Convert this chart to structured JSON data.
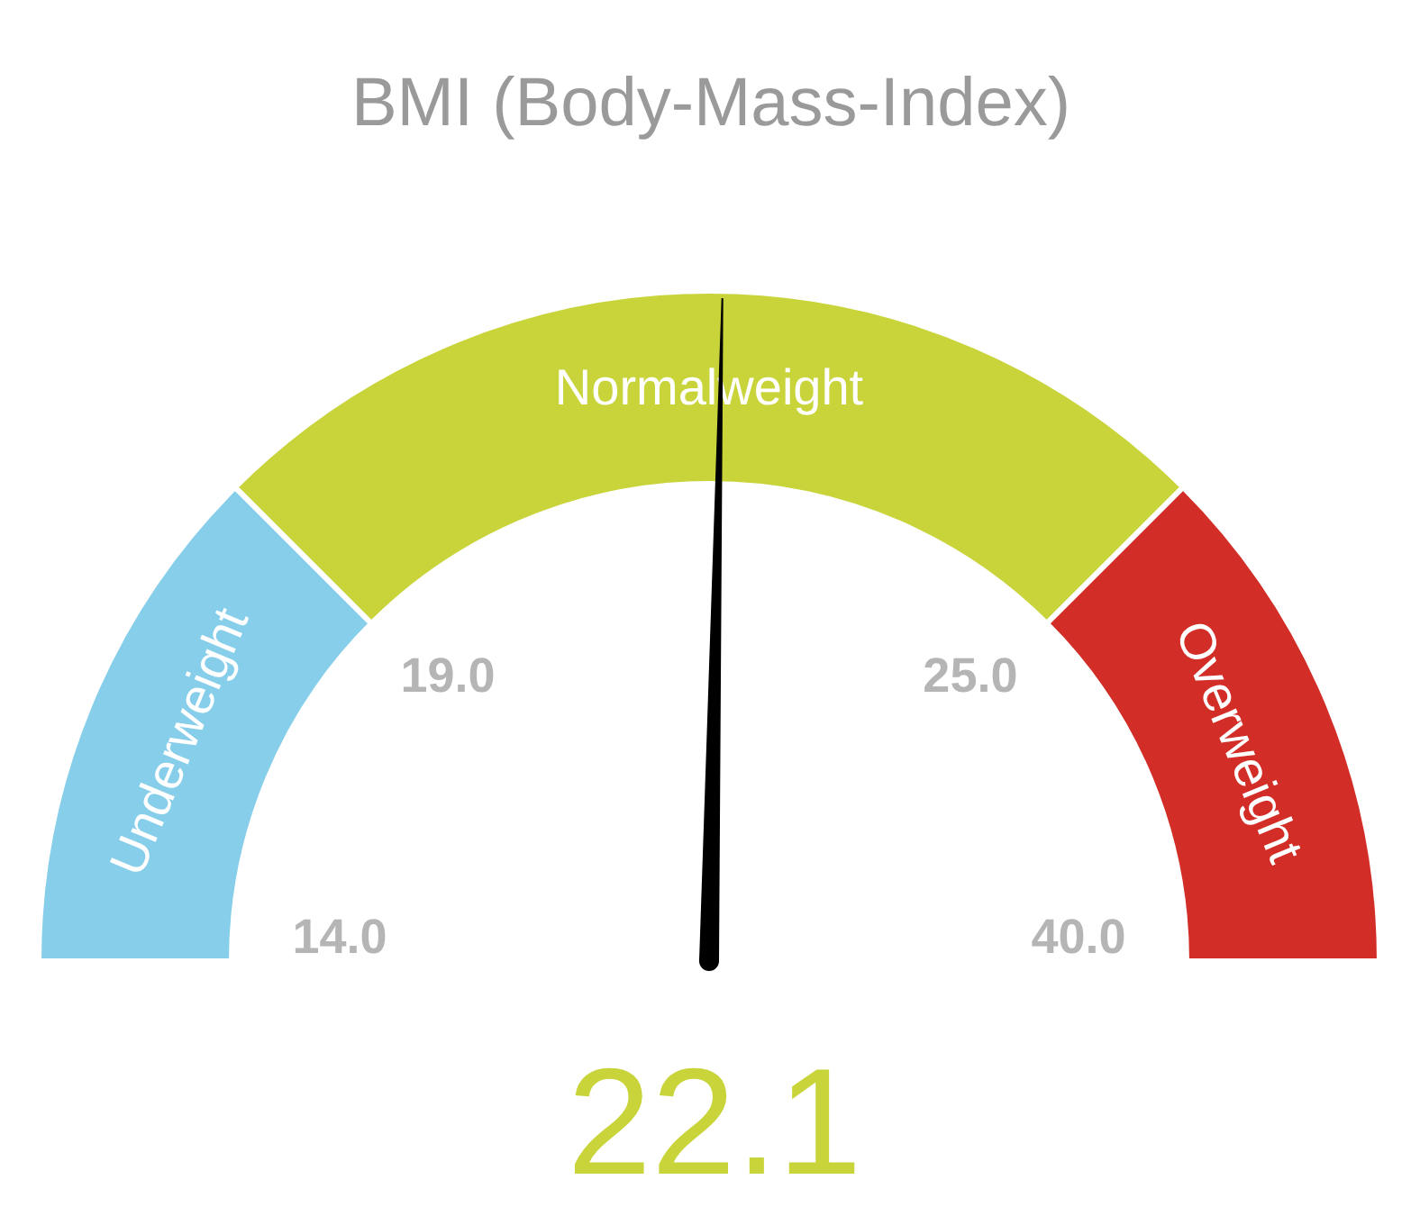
{
  "chart_data": {
    "type": "donut",
    "title": "BMI (Body-Mass-Index)",
    "categories": [
      "Underweight",
      "Normalweight",
      "Overweight"
    ],
    "values": [
      25,
      50,
      25
    ],
    "colors": [
      "#87ceea",
      "#c8d43a",
      "#d22e27"
    ],
    "needle": "Normalweight",
    "annotations": [
      "14.0",
      "19.0",
      "25.0",
      "40.0",
      "22.1"
    ]
  }
}
